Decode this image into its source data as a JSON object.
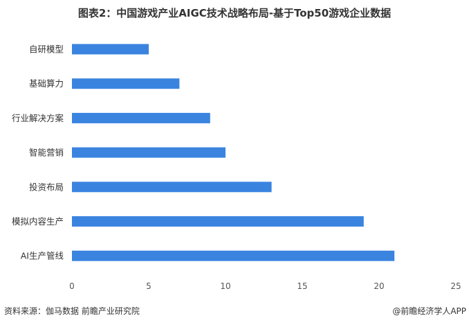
{
  "chart_data": {
    "type": "bar",
    "orientation": "horizontal",
    "title": "图表2：中国游戏产业AIGC技术战略布局-基于Top50游戏企业数据",
    "categories": [
      "自研模型",
      "基础算力",
      "行业解决方案",
      "智能营销",
      "投资布局",
      "模拟内容生产",
      "AI生产管线"
    ],
    "values": [
      5,
      7,
      9,
      10,
      13,
      19,
      21
    ],
    "xlim": [
      0,
      25
    ],
    "xticks": [
      0,
      5,
      10,
      15,
      20,
      25
    ],
    "grid": false,
    "bar_color": "#3A84E0"
  },
  "footer": {
    "source": "资料来源：伽马数据 前瞻产业研究院",
    "credit": "@前瞻经济学人APP"
  }
}
